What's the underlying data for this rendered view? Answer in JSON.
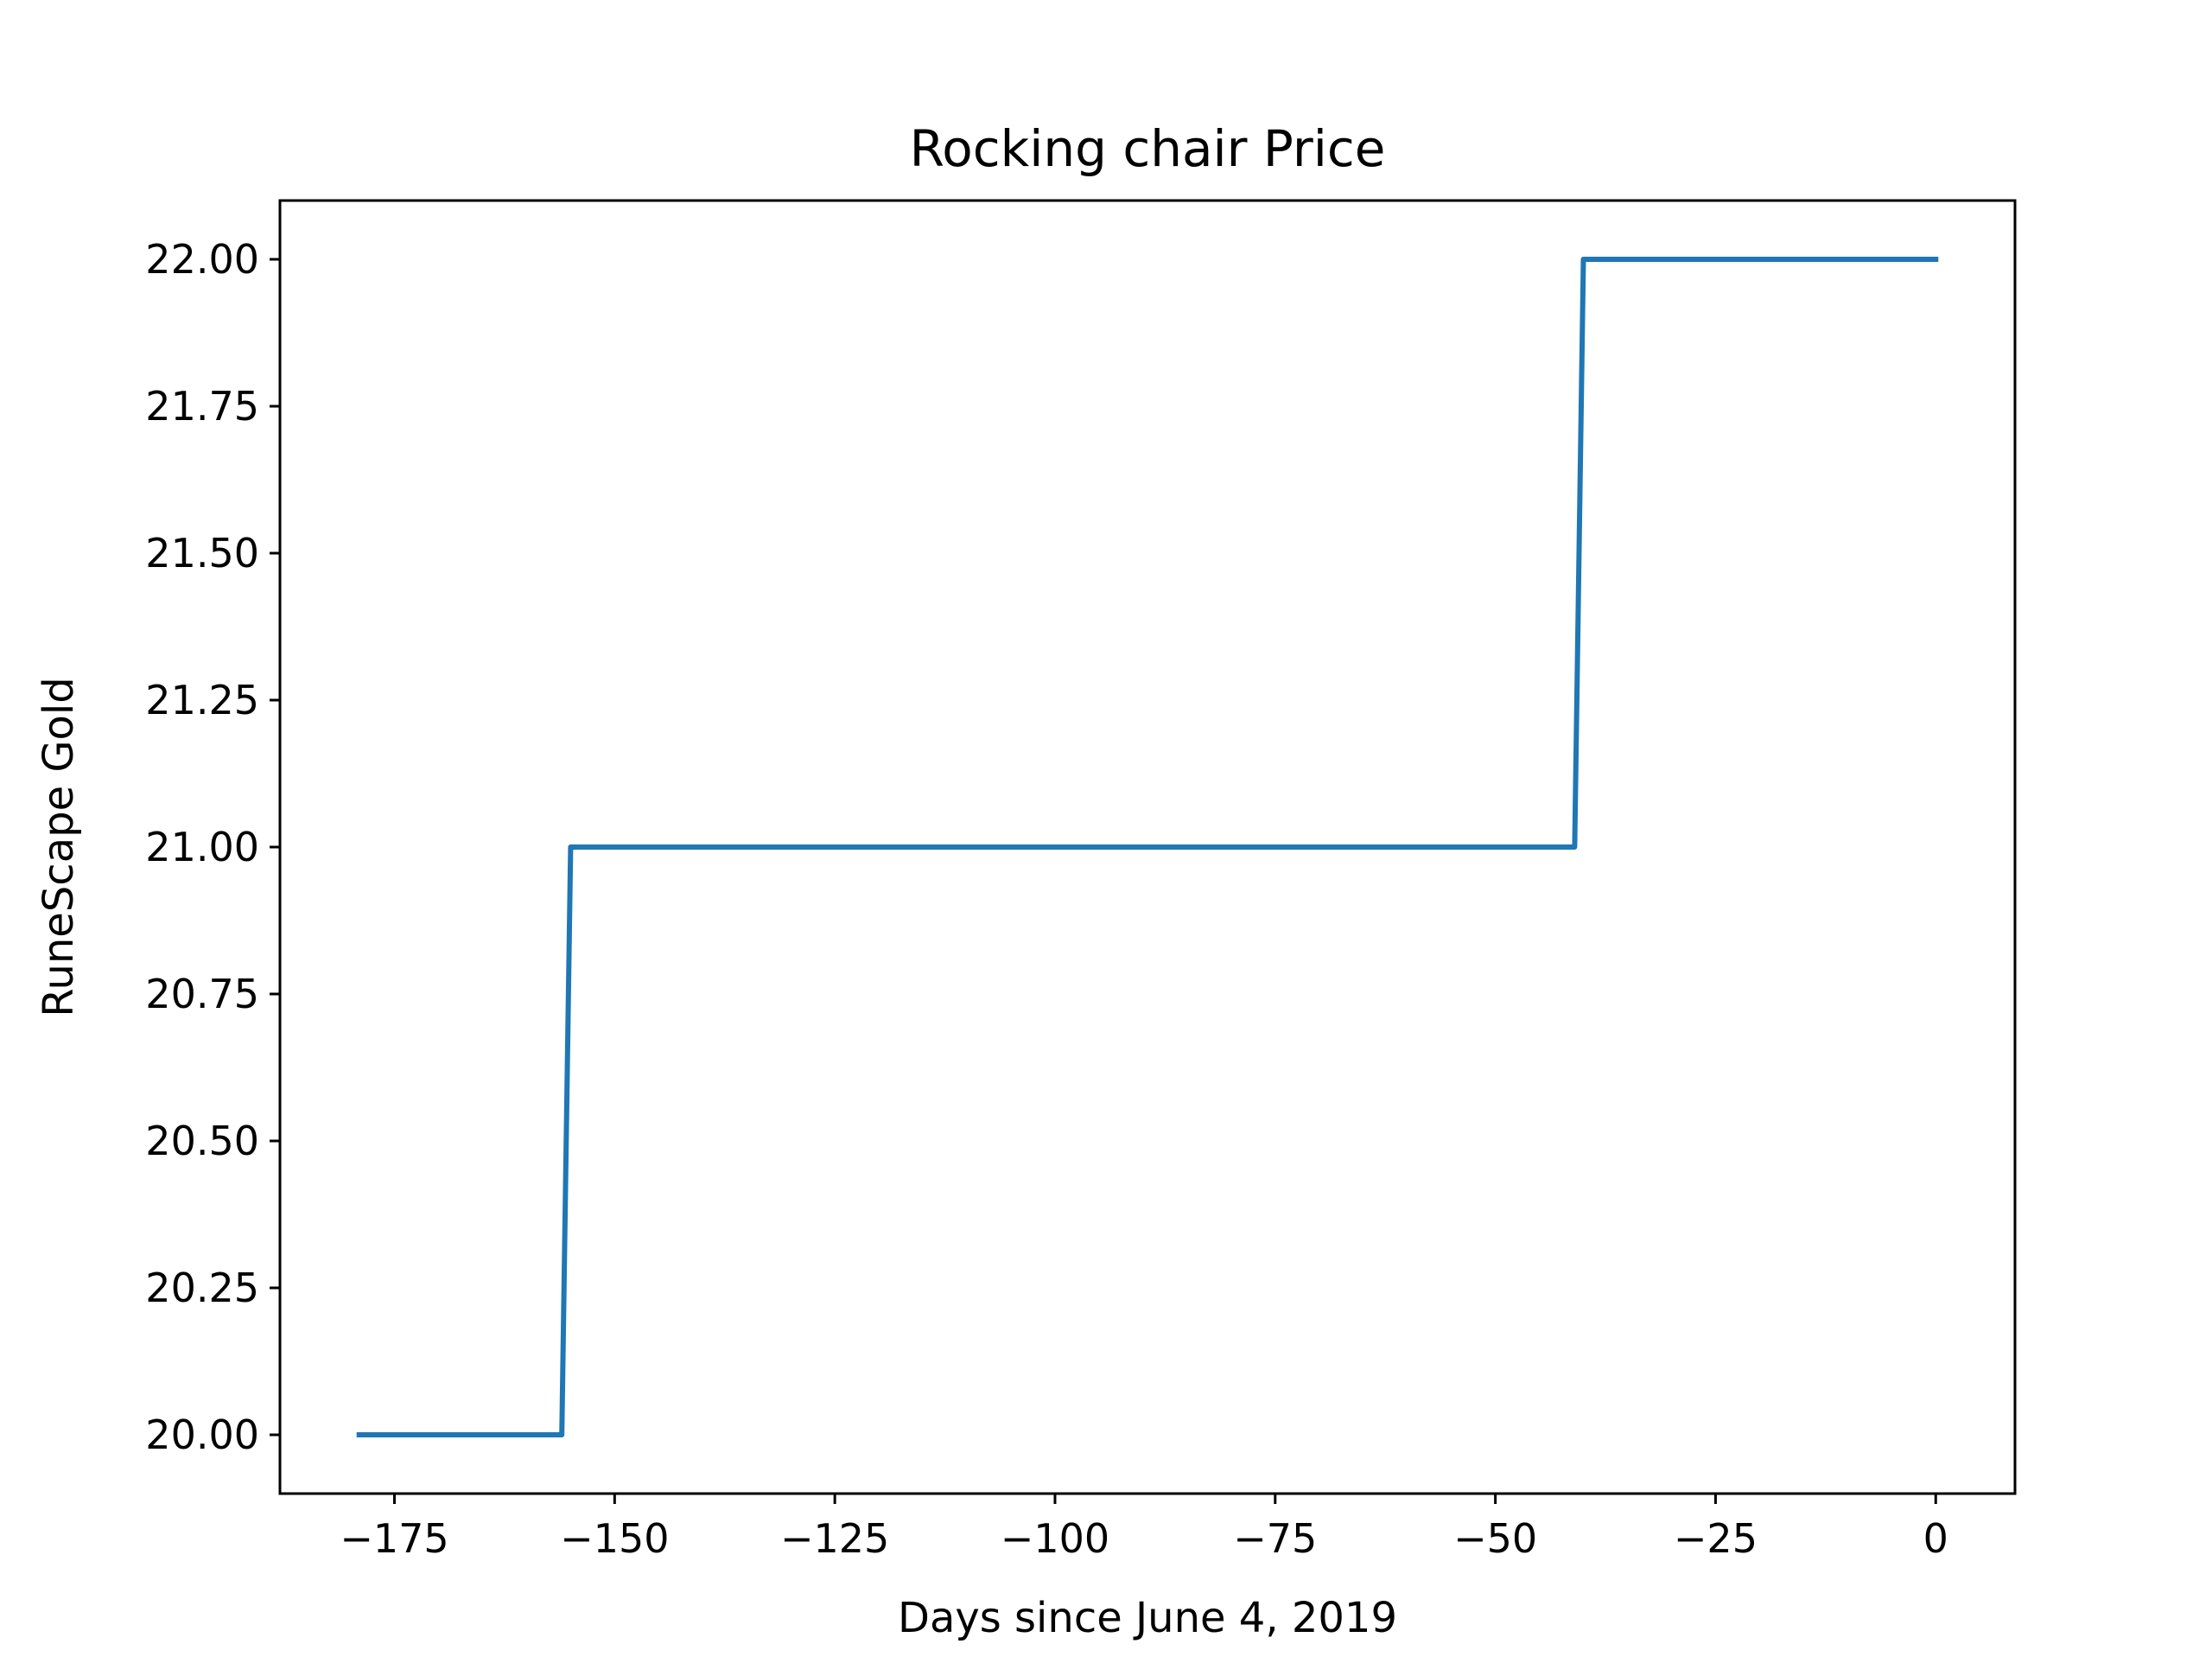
{
  "chart_data": {
    "type": "line",
    "title": "Rocking chair Price",
    "xlabel": "Days since June 4, 2019",
    "ylabel": "RuneScape Gold",
    "xlim": [
      -188,
      9
    ],
    "ylim": [
      19.9,
      22.1
    ],
    "x_ticks": [
      -175,
      -150,
      -125,
      -100,
      -75,
      -50,
      -25,
      0
    ],
    "x_tick_labels": [
      "−175",
      "−150",
      "−125",
      "−100",
      "−75",
      "−50",
      "−25",
      "0"
    ],
    "y_ticks": [
      20.0,
      20.25,
      20.5,
      20.75,
      21.0,
      21.25,
      21.5,
      21.75,
      22.0
    ],
    "y_tick_labels": [
      "20.00",
      "20.25",
      "20.50",
      "20.75",
      "21.00",
      "21.25",
      "21.50",
      "21.75",
      "22.00"
    ],
    "grid": false,
    "series": [
      {
        "color": "#1f77b4",
        "x": [
          -179,
          -156,
          -155,
          -41,
          -40,
          0
        ],
        "y": [
          20,
          20,
          21,
          21,
          22,
          22
        ]
      }
    ]
  }
}
